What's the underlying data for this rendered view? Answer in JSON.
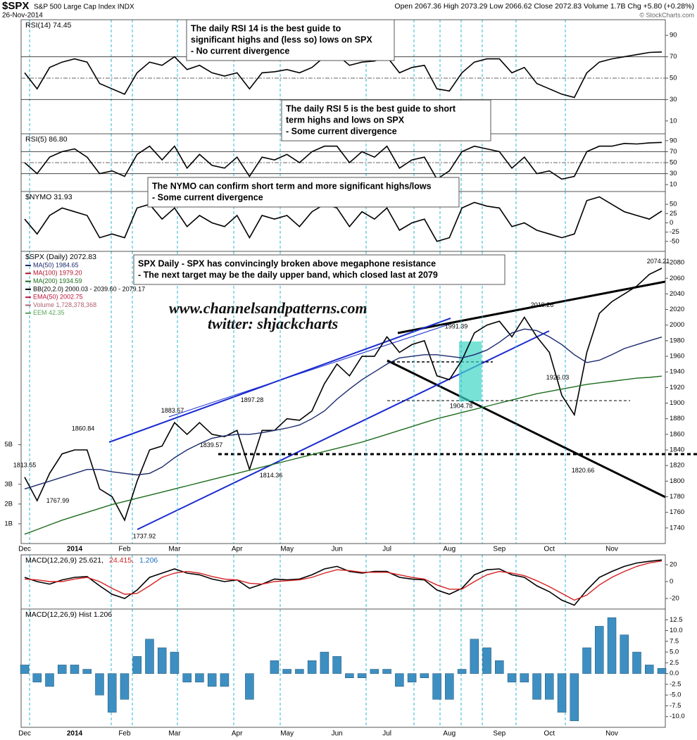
{
  "header": {
    "symbol": "$SPX",
    "name": "S&P 500 Large Cap Index INDX",
    "date": "26-Nov-2014",
    "quote": "Open 2067.36  High 2073.29  Low 2066.62  Close 2072.83  Volume 1.7B  Chg +5.80 (+0.28%)",
    "credit": "© StockCharts.com"
  },
  "annotations": [
    {
      "lines": [
        "The daily RSI 14 is the best guide to",
        "significant highs and (less so) lows on SPX",
        "- No current divergence"
      ]
    },
    {
      "lines": [
        "The daily RSI 5 is the best guide to short",
        "term highs and lows on SPX",
        "- Some current divergence"
      ]
    },
    {
      "lines": [
        "The NYMO can confirm short term and more significant highs/lows",
        "- Some current divergence"
      ]
    },
    {
      "lines": [
        "SPX Daily - SPX has convincingly broken above megaphone resistance",
        "- The next target may be the daily upper band, which closed last at 2079"
      ]
    }
  ],
  "watermark": [
    "www.channelsandpatterns.com",
    "twitter: shjackcharts"
  ],
  "chart_data": [
    {
      "type": "line",
      "title": "RSI(14) 74.45",
      "ylim": [
        0,
        100
      ],
      "yticks": [
        90,
        70,
        50,
        30,
        10
      ],
      "guides": [
        70,
        30
      ],
      "midline": 50,
      "series": [
        {
          "color": "#000000",
          "values": [
            55,
            40,
            60,
            65,
            68,
            65,
            45,
            40,
            35,
            55,
            65,
            62,
            70,
            58,
            62,
            55,
            52,
            55,
            40,
            55,
            56,
            58,
            55,
            60,
            70,
            72,
            62,
            65,
            66,
            70,
            55,
            60,
            62,
            40,
            38,
            55,
            65,
            68,
            68,
            55,
            60,
            45,
            40,
            35,
            32,
            55,
            65,
            68,
            70,
            72,
            74,
            74.45
          ]
        }
      ]
    },
    {
      "type": "line",
      "title": "RSI(5) 86.80",
      "ylim": [
        0,
        100
      ],
      "yticks": [
        90,
        70,
        50,
        30,
        10
      ],
      "guides": [
        70,
        30
      ],
      "midline": 50,
      "series": [
        {
          "color": "#000000",
          "values": [
            50,
            30,
            60,
            70,
            75,
            60,
            30,
            35,
            25,
            65,
            80,
            55,
            80,
            40,
            65,
            45,
            40,
            60,
            25,
            60,
            55,
            65,
            50,
            70,
            80,
            80,
            50,
            70,
            60,
            80,
            40,
            55,
            60,
            20,
            35,
            70,
            80,
            75,
            70,
            40,
            60,
            30,
            35,
            20,
            25,
            70,
            80,
            80,
            85,
            84,
            86,
            86.8
          ]
        }
      ]
    },
    {
      "type": "line",
      "title": "$NYMO 31.93",
      "ylim": [
        -75,
        75
      ],
      "yticks": [
        50,
        25,
        0,
        -25,
        -50
      ],
      "series": [
        {
          "color": "#000000",
          "values": [
            10,
            -30,
            20,
            40,
            30,
            20,
            -40,
            -30,
            -40,
            40,
            50,
            10,
            40,
            -10,
            20,
            0,
            -10,
            20,
            -40,
            20,
            10,
            20,
            -10,
            30,
            50,
            40,
            -10,
            30,
            10,
            40,
            -20,
            0,
            10,
            -50,
            -40,
            40,
            55,
            45,
            40,
            -10,
            0,
            -20,
            -30,
            -40,
            -30,
            60,
            70,
            50,
            30,
            20,
            10,
            31.93
          ]
        }
      ]
    },
    {
      "type": "line",
      "title": "$SPX (Daily) 2072.83",
      "categories": [
        "Dec",
        null,
        null,
        null,
        "2014",
        null,
        null,
        null,
        "Feb",
        null,
        null,
        null,
        "Mar",
        null,
        null,
        null,
        null,
        "Apr",
        null,
        null,
        null,
        "May",
        null,
        null,
        null,
        "Jun",
        null,
        null,
        null,
        "Jul",
        null,
        null,
        null,
        null,
        "Aug",
        null,
        null,
        null,
        "Sep",
        null,
        null,
        null,
        "Oct",
        null,
        null,
        null,
        null,
        "Nov",
        null,
        null,
        null,
        null
      ],
      "ylim": [
        1720,
        2090
      ],
      "yticks": [
        1740,
        1760,
        1780,
        1800,
        1820,
        1840,
        1860,
        1880,
        1900,
        1920,
        1940,
        1960,
        1980,
        2000,
        2020,
        2040,
        2060,
        2080
      ],
      "volume_ylim": [
        0,
        14600000000
      ],
      "volume_ticks": [
        {
          "value": 5000000000,
          "label": "5B"
        },
        {
          "value": 3000000000,
          "label": "3B"
        },
        {
          "value": 2000000000,
          "label": "2B"
        },
        {
          "value": 1000000000,
          "label": "1B"
        }
      ],
      "legend": [
        {
          "text": "MA(50) 1984.65",
          "color": "#1a2a6c"
        },
        {
          "text": "MA(100) 1979.20",
          "color": "#b0132b"
        },
        {
          "text": "MA(200) 1934.59",
          "color": "#1d6b1d"
        },
        {
          "text": "BB(20,2.0) 2000.03 - 2039.60 - 2079.17",
          "color": "#000000"
        },
        {
          "text": "EMA(50) 2002.75",
          "color": "#c0143c"
        },
        {
          "text": "Volume 1,728,378,368",
          "color": "#b06070"
        },
        {
          "text": "EEM 42.35",
          "color": "#5aa55a"
        }
      ],
      "series": [
        {
          "color": "#000000",
          "values": [
            1805,
            1775,
            1810,
            1835,
            1840,
            1840,
            1790,
            1780,
            1750,
            1800,
            1840,
            1845,
            1875,
            1860,
            1875,
            1860,
            1857,
            1865,
            1815,
            1865,
            1865,
            1880,
            1878,
            1890,
            1925,
            1950,
            1935,
            1960,
            1960,
            1985,
            1965,
            1975,
            1980,
            1935,
            1930,
            1955,
            1990,
            2000,
            2005,
            1985,
            2010,
            1985,
            1965,
            1910,
            1885,
            1965,
            2015,
            2030,
            2040,
            2050,
            2065,
            2072.83
          ]
        },
        {
          "color": "#1a2a6c",
          "values": [
            1790,
            1795,
            1800,
            1805,
            1810,
            1815,
            1815,
            1812,
            1810,
            1808,
            1810,
            1818,
            1830,
            1840,
            1848,
            1855,
            1858,
            1860,
            1860,
            1862,
            1865,
            1868,
            1872,
            1880,
            1890,
            1905,
            1918,
            1930,
            1940,
            1950,
            1958,
            1960,
            1962,
            1962,
            1960,
            1958,
            1962,
            1968,
            1978,
            1990,
            1995,
            1993,
            1985,
            1975,
            1962,
            1952,
            1955,
            1962,
            1970,
            1975,
            1980,
            1984.65
          ]
        },
        {
          "color": "#1d6b1d",
          "values": [
            1732,
            1738,
            1744,
            1750,
            1755,
            1760,
            1765,
            1770,
            1774,
            1778,
            1782,
            1786,
            1790,
            1794,
            1798,
            1802,
            1806,
            1810,
            1814,
            1818,
            1822,
            1826,
            1830,
            1834,
            1838,
            1842,
            1846,
            1850,
            1855,
            1860,
            1865,
            1870,
            1875,
            1880,
            1884,
            1888,
            1892,
            1896,
            1900,
            1904,
            1908,
            1912,
            1915,
            1918,
            1921,
            1924,
            1926,
            1928,
            1930,
            1932,
            1933,
            1934.59
          ]
        }
      ],
      "price_labels": [
        2074.21,
        2019.26,
        1991.39,
        1904.78,
        1926.03,
        1820.66,
        1883.57,
        1897.28,
        1860.84,
        1813.55,
        1839.57,
        1814.36,
        1767.99,
        1737.92
      ]
    },
    {
      "type": "line",
      "title": "MACD(12,26,9)",
      "title_values": [
        "25.621,",
        "24.415,",
        "1.206"
      ],
      "ylim": [
        -30,
        30
      ],
      "yticks": [
        20,
        0,
        -20
      ],
      "series": [
        {
          "color": "#000000",
          "values": [
            5,
            0,
            -3,
            2,
            5,
            6,
            -5,
            -15,
            -20,
            -10,
            5,
            10,
            15,
            10,
            8,
            3,
            0,
            2,
            -8,
            -3,
            3,
            2,
            3,
            8,
            15,
            18,
            12,
            10,
            12,
            12,
            5,
            3,
            2,
            -10,
            -15,
            -8,
            8,
            14,
            15,
            8,
            5,
            -5,
            -12,
            -22,
            -28,
            -10,
            5,
            12,
            18,
            22,
            24,
            25.621
          ]
        },
        {
          "color": "#d62020",
          "values": [
            3,
            2,
            0,
            0,
            3,
            5,
            0,
            -8,
            -15,
            -14,
            -5,
            5,
            10,
            12,
            10,
            6,
            3,
            2,
            -2,
            -3,
            0,
            1,
            2,
            5,
            10,
            14,
            13,
            11,
            11,
            11,
            8,
            5,
            3,
            -4,
            -9,
            -9,
            0,
            8,
            12,
            10,
            7,
            1,
            -6,
            -14,
            -22,
            -16,
            -4,
            5,
            12,
            18,
            22,
            24.415
          ]
        }
      ]
    },
    {
      "type": "bar",
      "title": "MACD(12,26,9) Hist 1.206",
      "color": "#3d8fc2",
      "categories": [
        "Dec",
        null,
        null,
        null,
        "2014",
        null,
        null,
        null,
        "Feb",
        null,
        null,
        null,
        "Mar",
        null,
        null,
        null,
        null,
        "Apr",
        null,
        null,
        null,
        "May",
        null,
        null,
        null,
        "Jun",
        null,
        null,
        null,
        "Jul",
        null,
        null,
        null,
        null,
        "Aug",
        null,
        null,
        null,
        "Sep",
        null,
        null,
        null,
        "Oct",
        null,
        null,
        null,
        null,
        "Nov",
        null,
        null,
        null,
        null
      ],
      "ylim": [
        -12.5,
        15
      ],
      "yticks": [
        {
          "value": 12.5,
          "label": "12.5"
        },
        {
          "value": 10,
          "label": "10.0"
        },
        {
          "value": 7.5,
          "label": "7.5"
        },
        {
          "value": 5,
          "label": "5.0"
        },
        {
          "value": 2.5,
          "label": "2.5"
        },
        {
          "value": 0,
          "label": "0.0"
        },
        {
          "value": -2.5,
          "label": "-2.5"
        },
        {
          "value": -5,
          "label": "-5.0"
        },
        {
          "value": -7.5,
          "label": "-7.5"
        },
        {
          "value": -10,
          "label": "-10.0"
        }
      ],
      "values": [
        2,
        -2,
        -3,
        2,
        2,
        1,
        -5,
        -9,
        -6,
        4,
        8,
        6,
        5,
        -2,
        -2,
        -3,
        -3,
        0,
        -6,
        0,
        3,
        1,
        1,
        3,
        5,
        4,
        -1,
        -1,
        1,
        1,
        -3,
        -2,
        -1,
        -6,
        -6,
        1,
        8,
        6,
        3,
        -2,
        -2,
        -6,
        -6,
        -9,
        -11,
        6,
        11,
        13,
        9,
        5,
        2,
        1.206
      ]
    }
  ]
}
